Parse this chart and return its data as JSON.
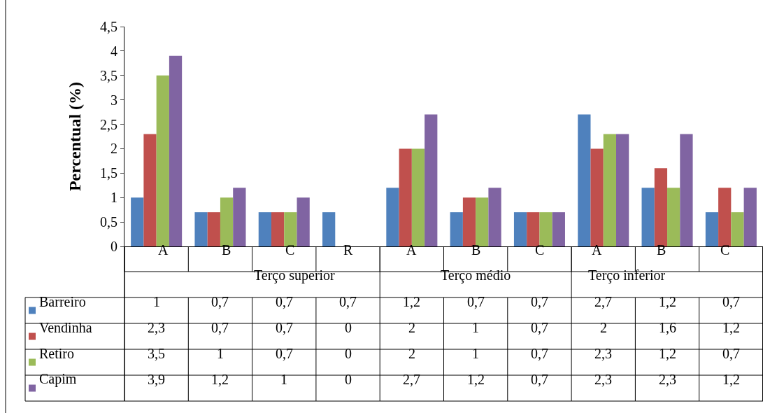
{
  "chart_data": {
    "type": "bar",
    "ylabel": "Percentual (%)",
    "categories": [
      "A",
      "B",
      "C",
      "R",
      "A",
      "B",
      "C",
      "A",
      "B",
      "C"
    ],
    "annotations": [
      "Terço superior",
      "Terço médio",
      "Terço inferior"
    ],
    "series": [
      {
        "name": "Barreiro",
        "color": "#4f81bd",
        "values": [
          1,
          0.7,
          0.7,
          0.7,
          1.2,
          0.7,
          0.7,
          2.7,
          1.2,
          0.7
        ],
        "value_labels": [
          "1",
          "0,7",
          "0,7",
          "0,7",
          "1,2",
          "0,7",
          "0,7",
          "2,7",
          "1,2",
          "0,7"
        ]
      },
      {
        "name": "Vendinha",
        "color": "#c0504d",
        "values": [
          2.3,
          0.7,
          0.7,
          0,
          2,
          1,
          0.7,
          2,
          1.6,
          1.2
        ],
        "value_labels": [
          "2,3",
          "0,7",
          "0,7",
          "0",
          "2",
          "1",
          "0,7",
          "2",
          "1,6",
          "1,2"
        ]
      },
      {
        "name": "Retiro",
        "color": "#9bbb59",
        "values": [
          3.5,
          1,
          0.7,
          0,
          2,
          1,
          0.7,
          2.3,
          1.2,
          0.7
        ],
        "value_labels": [
          "3,5",
          "1",
          "0,7",
          "0",
          "2",
          "1",
          "0,7",
          "2,3",
          "1,2",
          "0,7"
        ]
      },
      {
        "name": "Capim",
        "color": "#8064a2",
        "values": [
          3.9,
          1.2,
          1,
          0,
          2.7,
          1.2,
          0.7,
          2.3,
          2.3,
          1.2
        ],
        "value_labels": [
          "3,9",
          "1,2",
          "1",
          "0",
          "2,7",
          "1,2",
          "0,7",
          "2,3",
          "2,3",
          "1,2"
        ]
      }
    ],
    "ylim": [
      0,
      4.5
    ],
    "yticks": [
      0,
      {
        "value": 0.5,
        "label": "0,5"
      },
      1,
      {
        "value": 1.5,
        "label": "1,5"
      },
      2,
      {
        "value": 2.5,
        "label": "2,5"
      },
      3,
      {
        "value": 3.5,
        "label": "3,5"
      },
      4,
      {
        "value": 4.5,
        "label": "4,5"
      }
    ],
    "legend": "bottom left"
  }
}
